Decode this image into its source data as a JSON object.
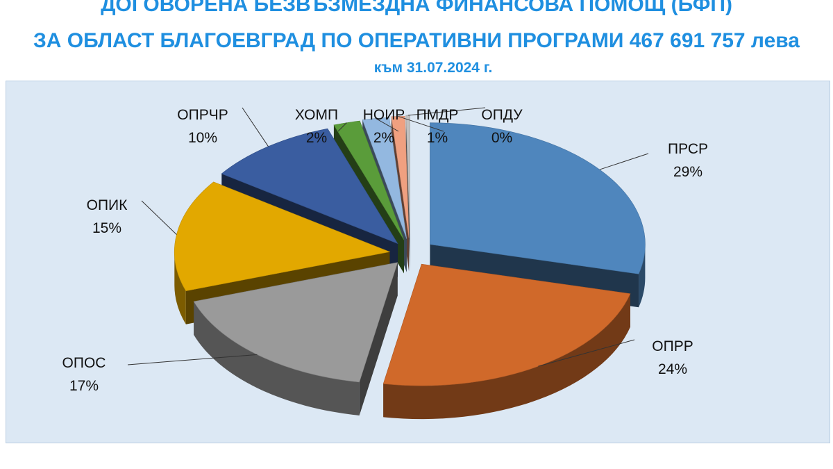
{
  "header": {
    "title_line1": "ДОГОВОРЕНА БЕЗВЪЗМЕЗДНА ФИНАНСОВА ПОМОЩ  (БФП)",
    "title_line2": "ЗА ОБЛАСТ БЛАГОЕВГРАД  ПО ОПЕРАТИВНИ ПРОГРАМИ 467 691 757 лева",
    "subtitle": "към 31.07.2024 г."
  },
  "chart_data": {
    "type": "pie",
    "style": "3d-exploded",
    "slices": [
      {
        "name": "ПРСР",
        "value": 29,
        "label": "29%",
        "color": "#4f86bd"
      },
      {
        "name": "ОПРР",
        "value": 24,
        "label": "24%",
        "color": "#d0692a"
      },
      {
        "name": "ОПОС",
        "value": 17,
        "label": "17%",
        "color": "#9a9a9a"
      },
      {
        "name": "ОПИК",
        "value": 15,
        "label": "15%",
        "color": "#e2a800"
      },
      {
        "name": "ОПРЧР",
        "value": 10,
        "label": "10%",
        "color": "#3a5da0"
      },
      {
        "name": "ХОМП",
        "value": 2,
        "label": "2%",
        "color": "#5a9c3a"
      },
      {
        "name": "НОИР",
        "value": 2,
        "label": "2%",
        "color": "#93b8e0"
      },
      {
        "name": "ПМДР",
        "value": 1,
        "label": "1%",
        "color": "#f0a080"
      },
      {
        "name": "ОПДУ",
        "value": 0,
        "label": "0%",
        "color": "#c0c0c0"
      }
    ],
    "legend": "none"
  }
}
